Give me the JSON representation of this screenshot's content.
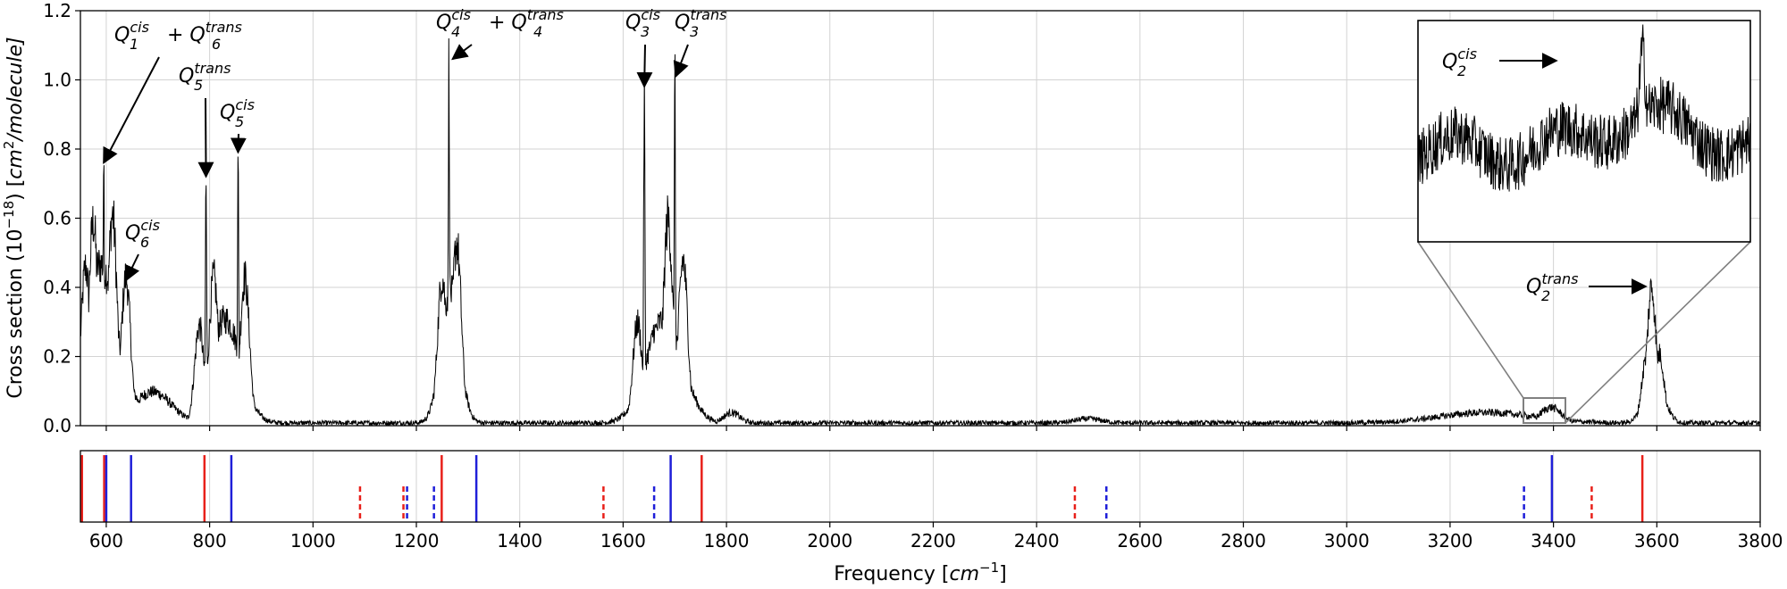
{
  "chart_data": {
    "type": "line",
    "xlabel_base": "Frequency [",
    "xlabel_unit": "cm",
    "xlabel_exp": "−1",
    "xlabel_close": "]",
    "ylabel_base": "Cross section (10",
    "ylabel_exp": "−18",
    "ylabel_mid": ") [",
    "ylabel_unit": "cm",
    "ylabel_unit_exp": "2",
    "ylabel_tail": "/molecule]",
    "xlim": [
      550,
      3800
    ],
    "ylim": [
      0,
      1.2
    ],
    "grid": true,
    "xticks": [
      "600",
      "800",
      "1000",
      "1200",
      "1400",
      "1600",
      "1800",
      "2000",
      "2200",
      "2400",
      "2600",
      "2800",
      "3000",
      "3200",
      "3400",
      "3600",
      "3800"
    ],
    "yticks": [
      "0.0",
      "0.2",
      "0.4",
      "0.6",
      "0.8",
      "1.0",
      "1.2"
    ],
    "spectrum_peaks": [
      {
        "x": 560,
        "y": 0.45
      },
      {
        "x": 575,
        "y": 0.58
      },
      {
        "x": 595,
        "y": 0.74
      },
      {
        "x": 612,
        "y": 0.6
      },
      {
        "x": 638,
        "y": 0.42
      },
      {
        "x": 655,
        "y": 0.08
      },
      {
        "x": 780,
        "y": 0.28
      },
      {
        "x": 793,
        "y": 0.69
      },
      {
        "x": 808,
        "y": 0.42
      },
      {
        "x": 833,
        "y": 0.3
      },
      {
        "x": 855,
        "y": 0.74
      },
      {
        "x": 868,
        "y": 0.42
      },
      {
        "x": 1250,
        "y": 0.42
      },
      {
        "x": 1263,
        "y": 1.03
      },
      {
        "x": 1278,
        "y": 0.52
      },
      {
        "x": 1628,
        "y": 0.29
      },
      {
        "x": 1641,
        "y": 0.96
      },
      {
        "x": 1660,
        "y": 0.27
      },
      {
        "x": 1687,
        "y": 0.59
      },
      {
        "x": 1700,
        "y": 0.99
      },
      {
        "x": 1716,
        "y": 0.47
      },
      {
        "x": 3580,
        "y": 0.19
      },
      {
        "x": 3590,
        "y": 0.39
      },
      {
        "x": 3605,
        "y": 0.2
      }
    ],
    "annotations": [
      {
        "id": "q1q6",
        "sym1": "Q",
        "sub1": "1",
        "sup1": "cis",
        "plus": "+",
        "sym2": "Q",
        "sub2": "6",
        "sup2": "trans",
        "target_x": 595,
        "target_y": 0.75
      },
      {
        "id": "q5trans",
        "sym1": "Q",
        "sub1": "5",
        "sup1": "trans",
        "target_x": 793,
        "target_y": 0.71
      },
      {
        "id": "q5cis",
        "sym1": "Q",
        "sub1": "5",
        "sup1": "cis",
        "target_x": 855,
        "target_y": 0.78
      },
      {
        "id": "q6cis",
        "sym1": "Q",
        "sub1": "6",
        "sup1": "cis",
        "target_x": 638,
        "target_y": 0.41
      },
      {
        "id": "q4q4",
        "sym1": "Q",
        "sub1": "4",
        "sup1": "cis",
        "plus": "+",
        "sym2": "Q",
        "sub2": "4",
        "sup2": "trans",
        "target_x": 1270,
        "target_y": 1.05
      },
      {
        "id": "q3cis",
        "sym1": "Q",
        "sub1": "3",
        "sup1": "cis",
        "target_x": 1641,
        "target_y": 0.97
      },
      {
        "id": "q3trans",
        "sym1": "Q",
        "sub1": "3",
        "sup1": "trans",
        "target_x": 1702,
        "target_y": 1.0
      },
      {
        "id": "q2trans",
        "sym1": "Q",
        "sub1": "2",
        "sup1": "trans",
        "target_x": 3585,
        "target_y": 0.4
      },
      {
        "id": "q2cis",
        "sym1": "Q",
        "sub1": "2",
        "sup1": "cis",
        "target_x": 3395,
        "target_y": 0.0
      }
    ],
    "inset": {
      "xlim": [
        3340,
        3420
      ],
      "ylim": [
        0,
        0.085
      ]
    },
    "stick_lines": [
      {
        "x": 553,
        "color": "red",
        "style": "solid"
      },
      {
        "x": 596,
        "color": "red",
        "style": "solid"
      },
      {
        "x": 600,
        "color": "blue",
        "style": "solid"
      },
      {
        "x": 648,
        "color": "blue",
        "style": "solid"
      },
      {
        "x": 790,
        "color": "red",
        "style": "solid"
      },
      {
        "x": 842,
        "color": "blue",
        "style": "solid"
      },
      {
        "x": 1091,
        "color": "red",
        "style": "dashed"
      },
      {
        "x": 1175,
        "color": "red",
        "style": "dashed"
      },
      {
        "x": 1182,
        "color": "blue",
        "style": "dashed"
      },
      {
        "x": 1234,
        "color": "blue",
        "style": "dashed"
      },
      {
        "x": 1249,
        "color": "red",
        "style": "solid"
      },
      {
        "x": 1316,
        "color": "blue",
        "style": "solid"
      },
      {
        "x": 1562,
        "color": "red",
        "style": "dashed"
      },
      {
        "x": 1660,
        "color": "blue",
        "style": "dashed"
      },
      {
        "x": 1692,
        "color": "blue",
        "style": "solid"
      },
      {
        "x": 1752,
        "color": "red",
        "style": "solid"
      },
      {
        "x": 2474,
        "color": "red",
        "style": "dashed"
      },
      {
        "x": 2535,
        "color": "blue",
        "style": "dashed"
      },
      {
        "x": 3343,
        "color": "blue",
        "style": "dashed"
      },
      {
        "x": 3397,
        "color": "blue",
        "style": "solid"
      },
      {
        "x": 3474,
        "color": "red",
        "style": "dashed"
      },
      {
        "x": 3572,
        "color": "red",
        "style": "solid"
      }
    ],
    "colors": {
      "spectrum": "#000000",
      "red": "#e8201a",
      "blue": "#1f1fd9",
      "grid": "#d3d3d3",
      "inset_box": "#808080"
    }
  }
}
